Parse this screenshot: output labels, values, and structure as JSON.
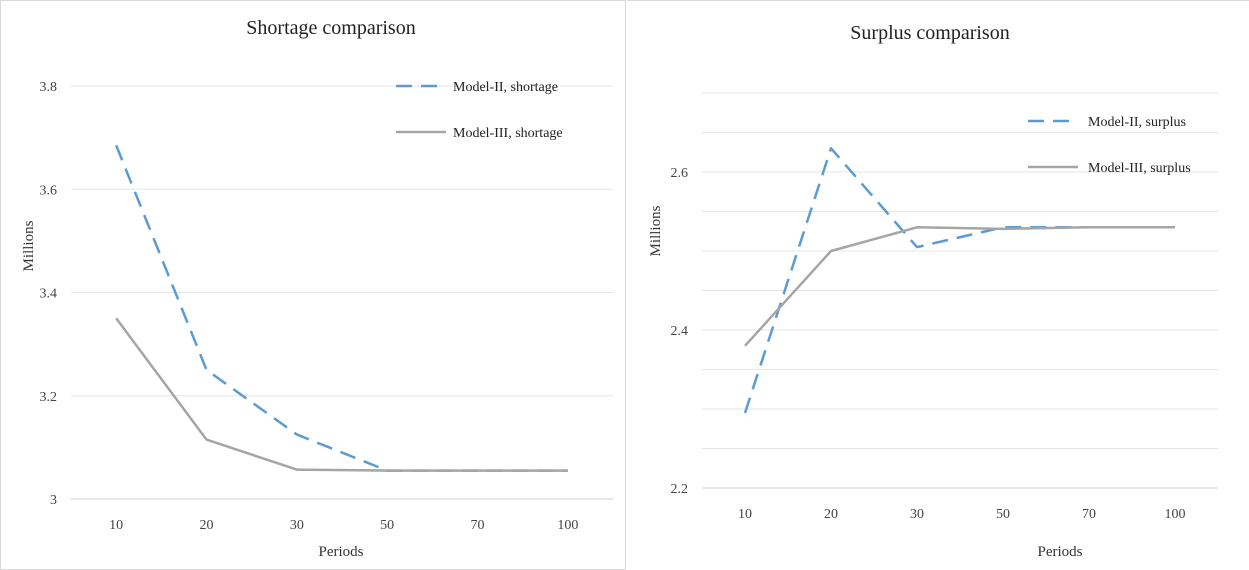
{
  "chart_data": [
    {
      "type": "line",
      "title": "Shortage comparison",
      "xlabel": "Periods",
      "ylabel": "Millions",
      "categories": [
        "10",
        "20",
        "30",
        "50",
        "70",
        "100"
      ],
      "ylim": [
        3,
        3.8
      ],
      "yticks": [
        "3",
        "3.2",
        "3.4",
        "3.6",
        "3.8"
      ],
      "yticks_values": [
        3,
        3.2,
        3.4,
        3.6,
        3.8
      ],
      "grid": true,
      "legend_position": "top-right",
      "series": [
        {
          "name": "Model-II, shortage",
          "values": [
            3.685,
            3.25,
            3.125,
            3.055,
            3.055,
            3.055
          ],
          "color": "#5b9bd5",
          "style": "dashed"
        },
        {
          "name": "Model-III, shortage",
          "values": [
            3.35,
            3.115,
            3.057,
            3.055,
            3.055,
            3.055
          ],
          "color": "#a5a5a5",
          "style": "solid"
        }
      ]
    },
    {
      "type": "line",
      "title": "Surplus comparison",
      "xlabel": "Periods",
      "ylabel": "Millions",
      "categories": [
        "10",
        "20",
        "30",
        "50",
        "70",
        "100"
      ],
      "ylim": [
        2.2,
        2.7
      ],
      "yticks": [
        "2.2",
        "2.4",
        "2.6"
      ],
      "yticks_values": [
        2.2,
        2.4,
        2.6
      ],
      "grid": true,
      "legend_position": "top-right",
      "series": [
        {
          "name": "Model-II, surplus",
          "values": [
            2.295,
            2.63,
            2.505,
            2.53,
            2.53,
            2.53
          ],
          "color": "#5b9bd5",
          "style": "dashed"
        },
        {
          "name": "Model-III, surplus",
          "values": [
            2.38,
            2.5,
            2.53,
            2.528,
            2.53,
            2.53
          ],
          "color": "#a5a5a5",
          "style": "solid"
        }
      ]
    }
  ]
}
